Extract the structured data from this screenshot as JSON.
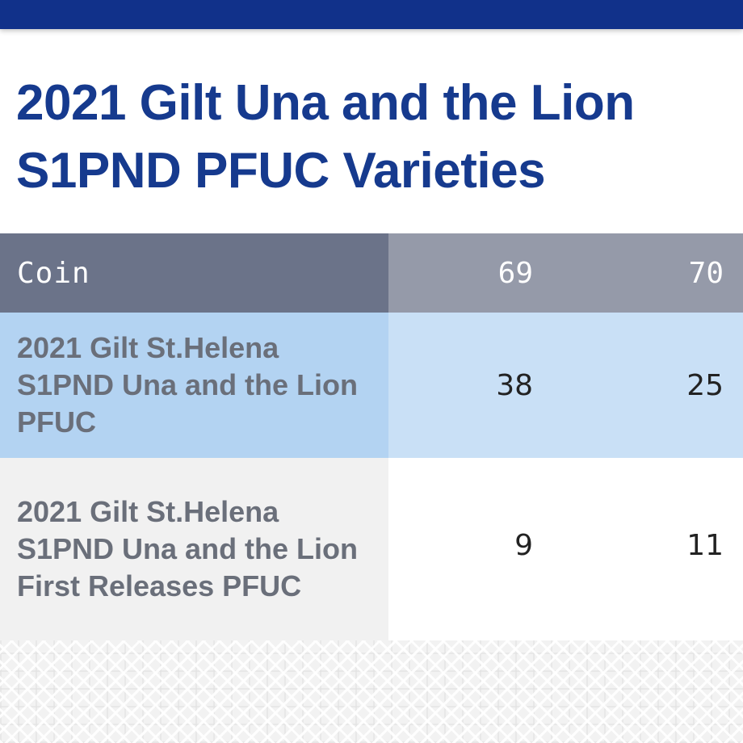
{
  "header": {
    "title": "2021 Gilt Una and the Lion S1PND PFUC Varieties"
  },
  "table": {
    "columns": [
      "Coin",
      "69",
      "70"
    ],
    "rows": [
      {
        "coin": "2021 Gilt St.Helena S1PND Una and the Lion PFUC",
        "g69": "38",
        "g70": "25"
      },
      {
        "coin": "2021 Gilt St.Helena S1PND Una and the Lion First Releases PFUC",
        "g69": "9",
        "g70": "11"
      }
    ]
  },
  "colors": {
    "brand": "#11318a",
    "title": "#163a8e",
    "header_bg": "#6b7389",
    "header_bg_light": "#959aa9",
    "highlight_row": "#b3d3f2"
  }
}
